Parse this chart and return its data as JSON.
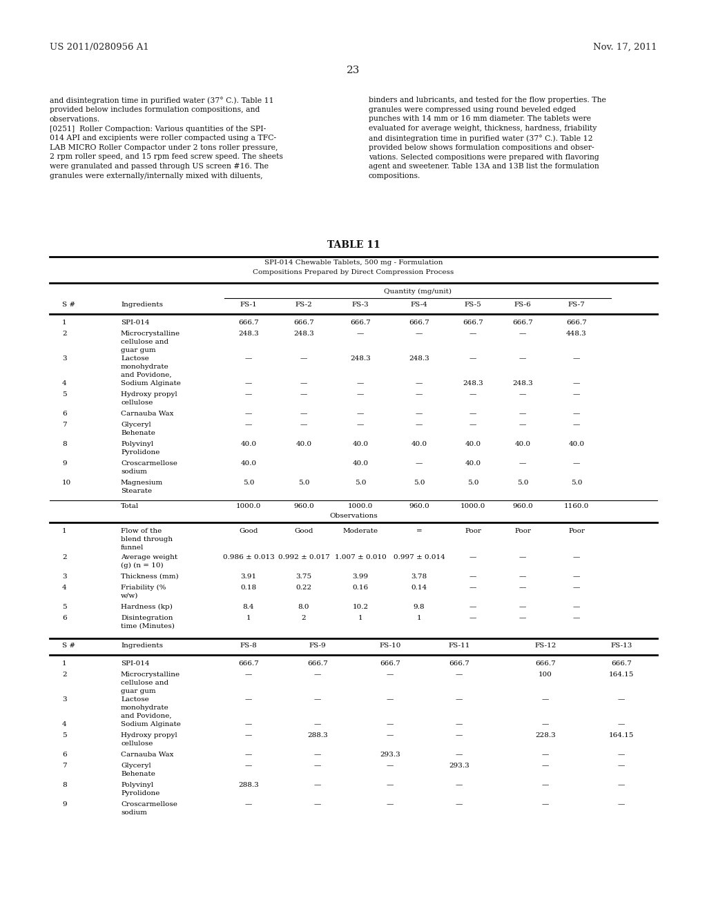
{
  "background_color": "#ffffff",
  "header_left": "US 2011/0280956 A1",
  "header_right": "Nov. 17, 2011",
  "page_number": "23",
  "paragraph_left": "and disintegration time in purified water (37° C.). Table 11\nprovided below includes formulation compositions, and\nobservations.\n[0251]  Roller Compaction: Various quantities of the SPI-\n014 API and excipients were roller compacted using a TFC-\nLAB MICRO Roller Compactor under 2 tons roller pressure,\n2 rpm roller speed, and 15 rpm feed screw speed. The sheets\nwere granulated and passed through US screen #16. The\ngranules were externally/internally mixed with diluents,",
  "paragraph_right": "binders and lubricants, and tested for the flow properties. The\ngranules were compressed using round beveled edged\npunches with 14 mm or 16 mm diameter. The tablets were\nevaluated for average weight, thickness, hardness, friability\nand disintegration time in purified water (37° C.). Table 12\nprovided below shows formulation compositions and obser-\nvations. Selected compositions were prepared with flavoring\nagent and sweetener. Table 13A and 13B list the formulation\ncompositions.",
  "table_title": "TABLE 11",
  "table_subtitle1": "SPI-014 Chewable Tablets, 500 mg - Formulation",
  "table_subtitle2": "Compositions Prepared by Direct Compression Process",
  "col_headers": [
    "S #",
    "Ingredients",
    "FS-1",
    "FS-2",
    "FS-3",
    "FS-4",
    "FS-5",
    "FS-6",
    "FS-7"
  ],
  "rows": [
    [
      "1",
      "SPI-014",
      "666.7",
      "666.7",
      "666.7",
      "666.7",
      "666.7",
      "666.7",
      "666.7"
    ],
    [
      "2",
      "Microcrystalline\ncellulose and\nguar gum",
      "248.3",
      "248.3",
      "—",
      "—",
      "—",
      "—",
      "448.3"
    ],
    [
      "3",
      "Lactose\nmonohydrate\nand Povidone,",
      "—",
      "—",
      "248.3",
      "248.3",
      "—",
      "—",
      "—"
    ],
    [
      "4",
      "Sodium Alginate",
      "—",
      "—",
      "—",
      "—",
      "248.3",
      "248.3",
      "—"
    ],
    [
      "5",
      "Hydroxy propyl\ncellulose",
      "—",
      "—",
      "—",
      "—",
      "—",
      "—",
      "—"
    ],
    [
      "6",
      "Carnauba Wax",
      "—",
      "—",
      "—",
      "—",
      "—",
      "—",
      "—"
    ],
    [
      "7",
      "Glyceryl\nBehenate",
      "—",
      "—",
      "—",
      "—",
      "—",
      "—",
      "—"
    ],
    [
      "8",
      "Polyvinyl\nPyrolidone",
      "40.0",
      "40.0",
      "40.0",
      "40.0",
      "40.0",
      "40.0",
      "40.0"
    ],
    [
      "9",
      "Croscarmellose\nsodium",
      "40.0",
      "",
      "40.0",
      "—",
      "40.0",
      "—",
      "—"
    ],
    [
      "10",
      "Magnesium\nStearate",
      "5.0",
      "5.0",
      "5.0",
      "5.0",
      "5.0",
      "5.0",
      "5.0"
    ]
  ],
  "total_row": [
    "Total",
    "1000.0",
    "960.0",
    "1000.0",
    "960.0",
    "1000.0",
    "960.0",
    "1160.0"
  ],
  "obs_header": "Observations",
  "obs_rows": [
    [
      "1",
      "Flow of the\nblend through\nfunnel",
      "Good",
      "Good",
      "Moderate",
      "=",
      "Poor",
      "Poor",
      "Poor"
    ],
    [
      "2",
      "Average weight\n(g) (n = 10)",
      "0.986 ± 0.013",
      "0.992 ± 0.017",
      "1.007 ± 0.010",
      "0.997 ± 0.014",
      "—",
      "—",
      "—"
    ],
    [
      "3",
      "Thickness (mm)",
      "3.91",
      "3.75",
      "3.99",
      "3.78",
      "—",
      "—",
      "—"
    ],
    [
      "4",
      "Friability (%\nw/w)",
      "0.18",
      "0.22",
      "0.16",
      "0.14",
      "—",
      "—",
      "—"
    ],
    [
      "5",
      "Hardness (kp)",
      "8.4",
      "8.0",
      "10.2",
      "9.8",
      "—",
      "—",
      "—"
    ],
    [
      "6",
      "Disintegration\ntime (Minutes)",
      "1",
      "2",
      "1",
      "1",
      "—",
      "—",
      "—"
    ]
  ],
  "col_headers2": [
    "S #",
    "Ingredients",
    "FS-8",
    "FS-9",
    "FS-10",
    "FS-11",
    "FS-12",
    "FS-13"
  ],
  "rows2": [
    [
      "1",
      "SPI-014",
      "666.7",
      "666.7",
      "666.7",
      "666.7",
      "666.7",
      "666.7"
    ],
    [
      "2",
      "Microcrystalline\ncellulose and\nguar gum",
      "—",
      "—",
      "—",
      "—",
      "100",
      "164.15"
    ],
    [
      "3",
      "Lactose\nmonohydrate\nand Povidone,",
      "—",
      "—",
      "—",
      "—",
      "—",
      "—"
    ],
    [
      "4",
      "Sodium Alginate",
      "—",
      "—",
      "—",
      "—",
      "—",
      "—"
    ],
    [
      "5",
      "Hydroxy propyl\ncellulose",
      "—",
      "288.3",
      "—",
      "—",
      "228.3",
      "164.15"
    ],
    [
      "6",
      "Carnauba Wax",
      "—",
      "—",
      "293.3",
      "—",
      "—",
      "—"
    ],
    [
      "7",
      "Glyceryl\nBehenate",
      "—",
      "—",
      "—",
      "293.3",
      "—",
      "—"
    ],
    [
      "8",
      "Polyvinyl\nPyrolidone",
      "288.3",
      "—",
      "—",
      "—",
      "—",
      "—"
    ],
    [
      "9",
      "Croscarmellose\nsodium",
      "—",
      "—",
      "—",
      "—",
      "—",
      "—"
    ]
  ]
}
